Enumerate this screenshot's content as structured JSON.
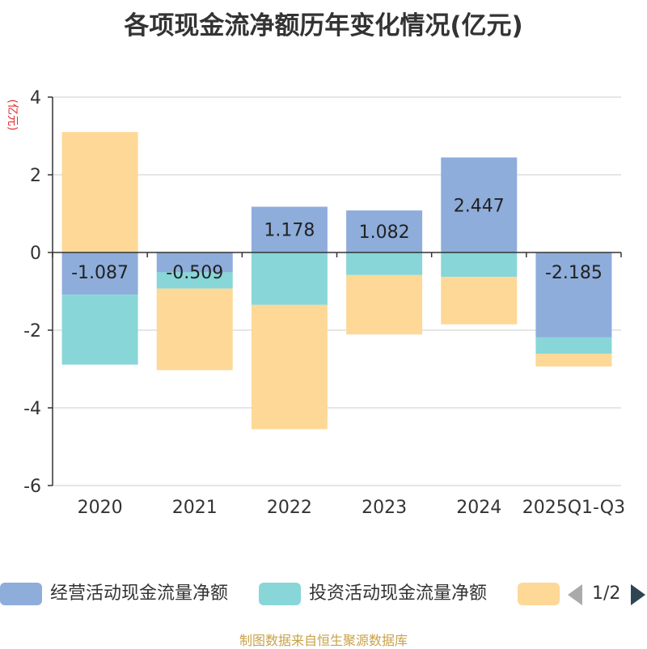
{
  "chart_data": {
    "type": "bar",
    "stacked": true,
    "title": "各项现金流净额历年变化情况(亿元)",
    "ylabel": "(亿元)",
    "xlabel": "",
    "ylim": [
      -6,
      4
    ],
    "yticks": [
      4,
      2,
      0,
      -2,
      -4,
      -6
    ],
    "ytick_labels": [
      "4",
      "2",
      "0",
      "-2",
      "-4",
      "-6"
    ],
    "grid": true,
    "categories": [
      "2020",
      "2021",
      "2022",
      "2023",
      "2024",
      "2025Q1-Q3"
    ],
    "series": [
      {
        "name": "经营活动现金流量净额",
        "color": "#8eaddb",
        "values": [
          -1.087,
          -0.509,
          1.178,
          1.082,
          2.447,
          -2.185
        ],
        "value_labels": [
          "-1.087",
          "-0.509",
          "1.178",
          "1.082",
          "2.447",
          "-2.185"
        ]
      },
      {
        "name": "投资活动现金流量净额",
        "color": "#88d6d8",
        "values": [
          -1.8,
          -0.42,
          -1.35,
          -0.58,
          -0.63,
          -0.42
        ]
      },
      {
        "name": "",
        "color": "#fdd897",
        "values": [
          3.1,
          -2.1,
          -3.2,
          -1.53,
          -1.22,
          -0.33
        ]
      }
    ]
  },
  "legend": {
    "items": [
      {
        "label": "经营活动现金流量净额",
        "color": "#8eaddb"
      },
      {
        "label": "投资活动现金流量净额",
        "color": "#88d6d8"
      },
      {
        "label": "",
        "color": "#fdd897"
      }
    ],
    "page_text": "1/2"
  },
  "source": "制图数据来自恒生聚源数据库"
}
